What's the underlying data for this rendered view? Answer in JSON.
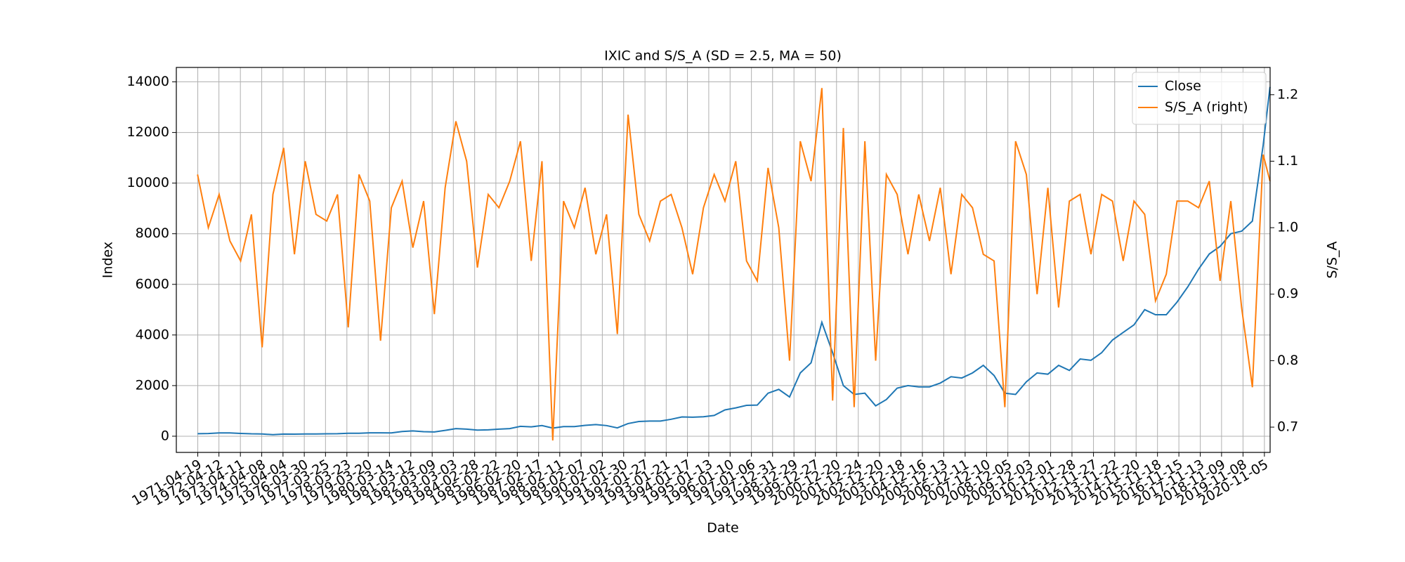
{
  "chart_data": {
    "type": "line",
    "title": "IXIC and S/S_A (SD = 2.5, MA = 50)",
    "x_label": "Date",
    "y_label": "Index",
    "y2_label": "S/S_A",
    "x": [
      "1971-04-15",
      "1971-10-15",
      "1972-04-15",
      "1972-10-15",
      "1973-04-15",
      "1973-10-15",
      "1974-04-15",
      "1974-10-15",
      "1975-04-15",
      "1975-10-15",
      "1976-04-15",
      "1976-10-15",
      "1977-04-15",
      "1977-10-15",
      "1978-04-15",
      "1978-10-15",
      "1979-04-15",
      "1979-10-15",
      "1980-04-15",
      "1980-10-15",
      "1981-04-15",
      "1981-10-15",
      "1982-04-15",
      "1982-10-15",
      "1983-04-15",
      "1983-10-15",
      "1984-04-15",
      "1984-10-15",
      "1985-04-15",
      "1985-10-15",
      "1986-04-15",
      "1986-10-15",
      "1987-04-15",
      "1987-10-15",
      "1988-04-15",
      "1988-10-15",
      "1989-04-15",
      "1989-10-15",
      "1990-04-15",
      "1990-10-15",
      "1991-04-15",
      "1991-10-15",
      "1992-04-15",
      "1992-10-15",
      "1993-04-15",
      "1993-10-15",
      "1994-04-15",
      "1994-10-15",
      "1995-04-15",
      "1995-10-15",
      "1996-04-15",
      "1996-10-15",
      "1997-04-15",
      "1997-10-15",
      "1998-04-15",
      "1998-10-15",
      "1999-04-15",
      "1999-10-15",
      "2000-04-15",
      "2000-10-15",
      "2001-04-15",
      "2001-10-15",
      "2002-04-15",
      "2002-10-15",
      "2003-04-15",
      "2003-10-15",
      "2004-04-15",
      "2004-10-15",
      "2005-04-15",
      "2005-10-15",
      "2006-04-15",
      "2006-10-15",
      "2007-04-15",
      "2007-10-15",
      "2008-04-15",
      "2008-10-15",
      "2009-04-15",
      "2009-10-15",
      "2010-04-15",
      "2010-10-15",
      "2011-04-15",
      "2011-10-15",
      "2012-04-15",
      "2012-10-15",
      "2013-04-15",
      "2013-10-15",
      "2014-04-15",
      "2014-10-15",
      "2015-04-15",
      "2015-10-15",
      "2016-04-15",
      "2016-10-15",
      "2017-04-15",
      "2017-10-15",
      "2018-04-15",
      "2018-10-15",
      "2019-04-15",
      "2019-10-15",
      "2020-04-15",
      "2020-10-15",
      "2021-02-08"
    ],
    "series": [
      {
        "name": "Close",
        "color": "#1f77b4",
        "axis": "y",
        "values": [
          100,
          105,
          130,
          130,
          110,
          95,
          90,
          60,
          85,
          80,
          90,
          90,
          95,
          100,
          115,
          115,
          135,
          135,
          130,
          185,
          210,
          180,
          170,
          230,
          300,
          280,
          240,
          250,
          280,
          300,
          390,
          370,
          420,
          320,
          380,
          380,
          430,
          460,
          420,
          330,
          500,
          580,
          600,
          600,
          670,
          760,
          750,
          770,
          820,
          1040,
          1120,
          1220,
          1230,
          1700,
          1850,
          1550,
          2500,
          2900,
          4500,
          3300,
          2000,
          1650,
          1700,
          1200,
          1450,
          1900,
          2000,
          1950,
          1950,
          2100,
          2350,
          2300,
          2500,
          2800,
          2400,
          1700,
          1650,
          2150,
          2500,
          2450,
          2800,
          2600,
          3050,
          3000,
          3300,
          3800,
          4100,
          4400,
          5000,
          4800,
          4800,
          5300,
          5900,
          6600,
          7200,
          7500,
          8000,
          8100,
          8500,
          11500,
          13800
        ]
      },
      {
        "name": "S/S_A (right)",
        "color": "#ff7f0e",
        "axis": "y2",
        "values": [
          1.08,
          1.0,
          1.05,
          0.98,
          0.95,
          1.02,
          0.82,
          1.05,
          1.12,
          0.96,
          1.1,
          1.02,
          1.01,
          1.05,
          0.85,
          1.08,
          1.04,
          0.83,
          1.03,
          1.07,
          0.97,
          1.04,
          0.87,
          1.06,
          1.16,
          1.1,
          0.94,
          1.05,
          1.03,
          1.07,
          1.13,
          0.95,
          1.1,
          0.68,
          1.04,
          1.0,
          1.06,
          0.96,
          1.02,
          0.84,
          1.17,
          1.02,
          0.98,
          1.04,
          1.05,
          1.0,
          0.93,
          1.03,
          1.08,
          1.04,
          1.1,
          0.95,
          0.92,
          1.09,
          1.0,
          0.8,
          1.13,
          1.07,
          1.21,
          0.74,
          1.15,
          0.73,
          1.13,
          0.8,
          1.08,
          1.05,
          0.96,
          1.05,
          0.98,
          1.06,
          0.93,
          1.05,
          1.03,
          0.96,
          0.95,
          0.73,
          1.13,
          1.08,
          0.9,
          1.06,
          0.88,
          1.04,
          1.05,
          0.96,
          1.05,
          1.04,
          0.95,
          1.04,
          1.02,
          0.89,
          0.93,
          1.04,
          1.04,
          1.03,
          1.07,
          0.92,
          1.04,
          0.88,
          0.76,
          1.11,
          1.07
        ]
      }
    ],
    "xlim": [
      "1970-04-20",
      "2021-02-10"
    ],
    "xticks": [
      "1971-04-19",
      "1972-04-12",
      "1973-04-11",
      "1974-04-08",
      "1975-04-04",
      "1976-03-30",
      "1977-03-25",
      "1978-03-23",
      "1979-03-20",
      "1980-03-14",
      "1981-03-12",
      "1982-03-09",
      "1983-03-03",
      "1984-02-28",
      "1985-02-22",
      "1986-02-20",
      "1987-02-17",
      "1988-02-11",
      "1989-02-07",
      "1990-02-02",
      "1991-01-30",
      "1992-01-27",
      "1993-01-21",
      "1994-01-17",
      "1995-01-13",
      "1996-01-10",
      "1997-01-06",
      "1997-12-31",
      "1998-12-29",
      "1999-12-27",
      "2000-12-20",
      "2001-12-24",
      "2002-12-20",
      "2003-12-18",
      "2004-12-16",
      "2005-12-13",
      "2006-12-11",
      "2007-12-10",
      "2008-12-05",
      "2009-12-03",
      "2010-12-01",
      "2011-11-28",
      "2012-11-27",
      "2013-11-22",
      "2014-11-20",
      "2015-11-18",
      "2016-11-15",
      "2017-11-13",
      "2018-11-09",
      "2019-11-08",
      "2020-11-05"
    ],
    "ylim": [
      -640,
      14570
    ],
    "yticks": [
      0,
      2000,
      4000,
      6000,
      8000,
      10000,
      12000,
      14000
    ],
    "y2lim": [
      0.662,
      1.241
    ],
    "y2ticks": [
      0.7,
      0.8,
      0.9,
      {
        "value": 1,
        "label": "1.0"
      },
      1.1,
      1.2
    ],
    "grid": true,
    "legend": "upper right"
  }
}
